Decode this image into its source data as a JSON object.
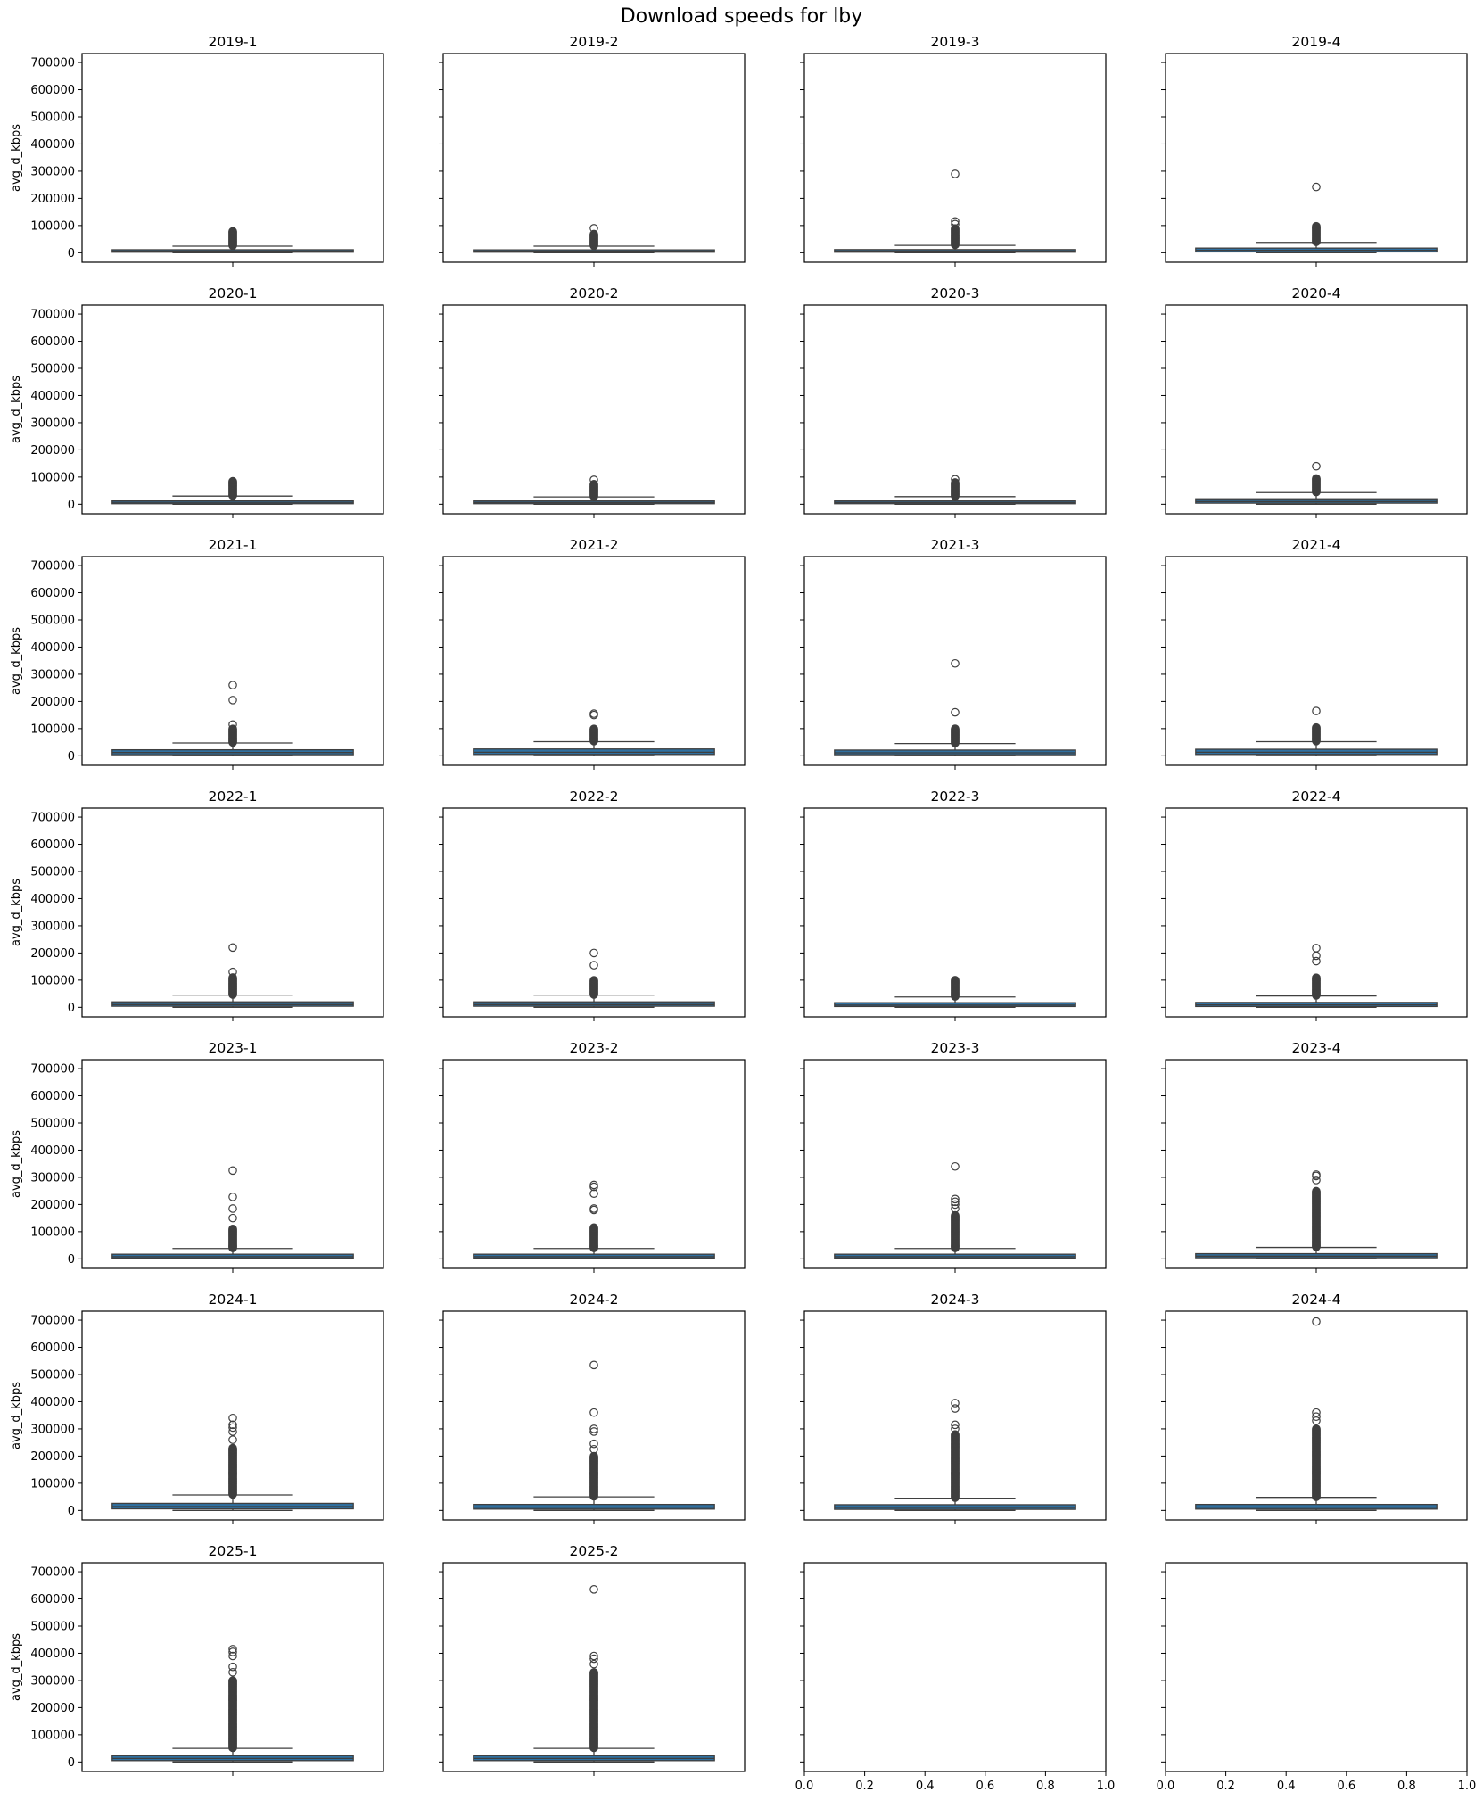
{
  "title": "Download speeds for lby",
  "chart_data": {
    "type": "boxplot",
    "title": "Download speeds for lby",
    "ylabel": "avg_d_kbps",
    "ylim": [
      -35000,
      733000
    ],
    "yticks": [
      0,
      100000,
      200000,
      300000,
      400000,
      500000,
      600000,
      700000
    ],
    "ytick_labels": [
      "0",
      "100000",
      "200000",
      "300000",
      "400000",
      "500000",
      "600000",
      "700000"
    ],
    "empty_xticks": [
      "0.0",
      "0.2",
      "0.4",
      "0.6",
      "0.8",
      "1.0"
    ],
    "grid": false,
    "box_color": "#2f70a1",
    "line_color": "#3f3f3f",
    "layout": {
      "rows": 7,
      "cols": 4
    },
    "panels": [
      {
        "title": "2019-1",
        "whislo": 0,
        "q1": 2000,
        "med": 6000,
        "q3": 11000,
        "whishi": 24000,
        "outlier_range": [
          26000,
          80000
        ],
        "outliers": []
      },
      {
        "title": "2019-2",
        "whislo": 0,
        "q1": 2000,
        "med": 5500,
        "q3": 10500,
        "whishi": 24000,
        "outlier_range": [
          26000,
          70000
        ],
        "outliers": [
          90000
        ]
      },
      {
        "title": "2019-3",
        "whislo": 0,
        "q1": 2000,
        "med": 6000,
        "q3": 11500,
        "whishi": 27000,
        "outlier_range": [
          29000,
          90000
        ],
        "outliers": [
          105000,
          115000,
          290000
        ]
      },
      {
        "title": "2019-4",
        "whislo": 0,
        "q1": 3000,
        "med": 9000,
        "q3": 17000,
        "whishi": 38000,
        "outlier_range": [
          40000,
          98000
        ],
        "outliers": [
          242000
        ]
      },
      {
        "title": "2020-1",
        "whislo": 0,
        "q1": 2000,
        "med": 7000,
        "q3": 13000,
        "whishi": 30000,
        "outlier_range": [
          32000,
          85000
        ],
        "outliers": []
      },
      {
        "title": "2020-2",
        "whislo": 0,
        "q1": 2000,
        "med": 6500,
        "q3": 12000,
        "whishi": 27000,
        "outlier_range": [
          29000,
          75000
        ],
        "outliers": [
          90000
        ]
      },
      {
        "title": "2020-3",
        "whislo": 0,
        "q1": 2000,
        "med": 6500,
        "q3": 12000,
        "whishi": 28000,
        "outlier_range": [
          30000,
          80000
        ],
        "outliers": [
          92000
        ]
      },
      {
        "title": "2020-4",
        "whislo": 0,
        "q1": 4000,
        "med": 10000,
        "q3": 20000,
        "whishi": 43000,
        "outlier_range": [
          45000,
          95000
        ],
        "outliers": [
          140000
        ]
      },
      {
        "title": "2021-1",
        "whislo": 0,
        "q1": 4000,
        "med": 12000,
        "q3": 22000,
        "whishi": 47000,
        "outlier_range": [
          49000,
          100000
        ],
        "outliers": [
          115000,
          205000,
          260000
        ]
      },
      {
        "title": "2021-2",
        "whislo": 0,
        "q1": 5000,
        "med": 13000,
        "q3": 25000,
        "whishi": 52000,
        "outlier_range": [
          54000,
          100000
        ],
        "outliers": [
          150000,
          155000
        ]
      },
      {
        "title": "2021-3",
        "whislo": 0,
        "q1": 4000,
        "med": 11000,
        "q3": 21000,
        "whishi": 45000,
        "outlier_range": [
          47000,
          100000
        ],
        "outliers": [
          160000,
          340000
        ]
      },
      {
        "title": "2021-4",
        "whislo": 0,
        "q1": 5000,
        "med": 13000,
        "q3": 24000,
        "whishi": 52000,
        "outlier_range": [
          54000,
          105000
        ],
        "outliers": [
          165000
        ]
      },
      {
        "title": "2022-1",
        "whislo": 0,
        "q1": 4000,
        "med": 10000,
        "q3": 20000,
        "whishi": 45000,
        "outlier_range": [
          47000,
          110000
        ],
        "outliers": [
          130000,
          220000
        ]
      },
      {
        "title": "2022-2",
        "whislo": 0,
        "q1": 4000,
        "med": 10000,
        "q3": 20000,
        "whishi": 45000,
        "outlier_range": [
          47000,
          100000
        ],
        "outliers": [
          155000,
          200000
        ]
      },
      {
        "title": "2022-3",
        "whislo": 0,
        "q1": 3000,
        "med": 8000,
        "q3": 17000,
        "whishi": 38000,
        "outlier_range": [
          40000,
          100000
        ],
        "outliers": []
      },
      {
        "title": "2022-4",
        "whislo": 0,
        "q1": 3000,
        "med": 9000,
        "q3": 18000,
        "whishi": 42000,
        "outlier_range": [
          44000,
          110000
        ],
        "outliers": [
          170000,
          190000,
          218000
        ]
      },
      {
        "title": "2023-1",
        "whislo": 0,
        "q1": 3000,
        "med": 8000,
        "q3": 17000,
        "whishi": 38000,
        "outlier_range": [
          40000,
          110000
        ],
        "outliers": [
          150000,
          185000,
          228000,
          325000
        ]
      },
      {
        "title": "2023-2",
        "whislo": 0,
        "q1": 3000,
        "med": 8000,
        "q3": 17000,
        "whishi": 38000,
        "outlier_range": [
          40000,
          115000
        ],
        "outliers": [
          180000,
          185000,
          240000,
          265000,
          272000
        ]
      },
      {
        "title": "2023-3",
        "whislo": 0,
        "q1": 3000,
        "med": 8000,
        "q3": 17000,
        "whishi": 38000,
        "outlier_range": [
          40000,
          160000
        ],
        "outliers": [
          185000,
          200000,
          210000,
          220000,
          340000
        ]
      },
      {
        "title": "2023-4",
        "whislo": 0,
        "q1": 4000,
        "med": 10000,
        "q3": 19000,
        "whishi": 42000,
        "outlier_range": [
          44000,
          250000
        ],
        "outliers": [
          290000,
          305000,
          310000
        ]
      },
      {
        "title": "2024-1",
        "whislo": 0,
        "q1": 6000,
        "med": 14000,
        "q3": 26000,
        "whishi": 57000,
        "outlier_range": [
          59000,
          230000
        ],
        "outliers": [
          260000,
          290000,
          305000,
          315000,
          340000
        ]
      },
      {
        "title": "2024-2",
        "whislo": 0,
        "q1": 5000,
        "med": 12000,
        "q3": 22000,
        "whishi": 50000,
        "outlier_range": [
          52000,
          200000
        ],
        "outliers": [
          225000,
          245000,
          290000,
          300000,
          360000,
          535000
        ]
      },
      {
        "title": "2024-3",
        "whislo": 0,
        "q1": 4000,
        "med": 11000,
        "q3": 21000,
        "whishi": 45000,
        "outlier_range": [
          47000,
          280000
        ],
        "outliers": [
          300000,
          315000,
          375000,
          395000
        ]
      },
      {
        "title": "2024-4",
        "whislo": 0,
        "q1": 5000,
        "med": 12000,
        "q3": 22000,
        "whishi": 48000,
        "outlier_range": [
          50000,
          300000
        ],
        "outliers": [
          330000,
          345000,
          360000,
          695000
        ]
      },
      {
        "title": "2025-1",
        "whislo": 0,
        "q1": 5000,
        "med": 13000,
        "q3": 23000,
        "whishi": 50000,
        "outlier_range": [
          52000,
          300000
        ],
        "outliers": [
          330000,
          350000,
          390000,
          405000,
          415000
        ]
      },
      {
        "title": "2025-2",
        "whislo": 0,
        "q1": 5000,
        "med": 13000,
        "q3": 23000,
        "whishi": 50000,
        "outlier_range": [
          52000,
          330000
        ],
        "outliers": [
          360000,
          380000,
          390000,
          635000
        ]
      }
    ]
  }
}
